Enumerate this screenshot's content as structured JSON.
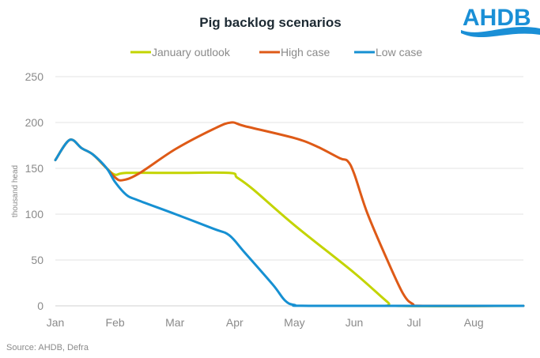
{
  "logo_text": "AHDB",
  "chart_data": {
    "type": "line",
    "title": "Pig backlog scenarios",
    "xlabel": "",
    "ylabel": "thousand head",
    "source": "Source: AHDB, Defra",
    "x_unit": "months since start of January",
    "x_ticks": [
      "Jan",
      "Feb",
      "Mar",
      "Apr",
      "May",
      "Jun",
      "Jul",
      "Aug"
    ],
    "xlim": [
      0,
      7.83
    ],
    "ylim": [
      0,
      250
    ],
    "y_ticks": [
      "0",
      "50",
      "100",
      "150",
      "200",
      "250"
    ],
    "y_tick_values": [
      0,
      50,
      100,
      150,
      200,
      250
    ],
    "grid": true,
    "legend_position": "top-center",
    "series": [
      {
        "name": "January outlook",
        "color": "#c3d400",
        "x": [
          0,
          0.24,
          0.44,
          0.63,
          0.86,
          1.0,
          1.19,
          2.01,
          2.91,
          3.04,
          3.31,
          4.0,
          5.0,
          5.56,
          5.69,
          7.83
        ],
        "y": [
          159,
          181,
          172,
          165,
          150,
          143,
          145,
          145,
          145,
          140,
          127,
          88,
          36,
          4,
          0,
          0
        ]
      },
      {
        "name": "High case",
        "color": "#de5a17",
        "x": [
          0,
          0.24,
          0.44,
          0.63,
          0.86,
          1.0,
          1.12,
          1.39,
          2.01,
          2.65,
          2.94,
          3.17,
          4.0,
          4.37,
          4.76,
          4.89,
          5.0,
          5.22,
          5.56,
          5.82,
          5.98,
          6.15,
          7.83
        ],
        "y": [
          159,
          181,
          172,
          165,
          150,
          140,
          137,
          144,
          171,
          193,
          200,
          196,
          183,
          174,
          161,
          158,
          144,
          101,
          49,
          13,
          2,
          0,
          0
        ]
      },
      {
        "name": "Low case",
        "color": "#1690d2",
        "x": [
          0,
          0.24,
          0.44,
          0.63,
          0.86,
          1.0,
          1.19,
          1.39,
          2.01,
          2.65,
          2.91,
          3.17,
          3.64,
          3.84,
          4.0,
          4.37,
          7.83
        ],
        "y": [
          159,
          181,
          172,
          165,
          150,
          135,
          121,
          115,
          100,
          84,
          77,
          58,
          23,
          6,
          1,
          0,
          0
        ]
      }
    ]
  }
}
